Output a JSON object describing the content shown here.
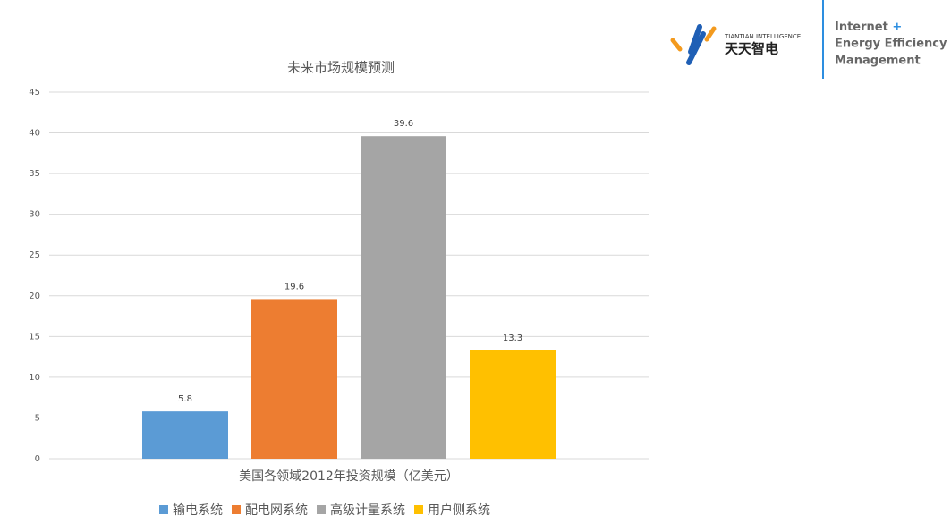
{
  "header": {
    "brand_en": "TIANTIAN INTELLIGENCE",
    "brand_cn": "天天智电",
    "tagline": [
      "Internet",
      "+",
      "Energy Efficiency",
      "Management"
    ]
  },
  "chart_data": {
    "type": "bar",
    "title": "未来市场规模预测",
    "categories": [
      "美国各领域2012年投资规模（亿美元）"
    ],
    "series": [
      {
        "name": "输电系统",
        "color": "#5b9bd5",
        "values": [
          5.8
        ]
      },
      {
        "name": "配电网系统",
        "color": "#ed7d31",
        "values": [
          19.6
        ]
      },
      {
        "name": "高级计量系统",
        "color": "#a5a5a5",
        "values": [
          39.6
        ]
      },
      {
        "name": "用户侧系统",
        "color": "#ffc000",
        "values": [
          13.3
        ]
      }
    ],
    "ylim": [
      0,
      45
    ],
    "yticks": [
      0,
      5,
      10,
      15,
      20,
      25,
      30,
      35,
      40,
      45
    ],
    "grid": true,
    "legend": "bottom"
  }
}
